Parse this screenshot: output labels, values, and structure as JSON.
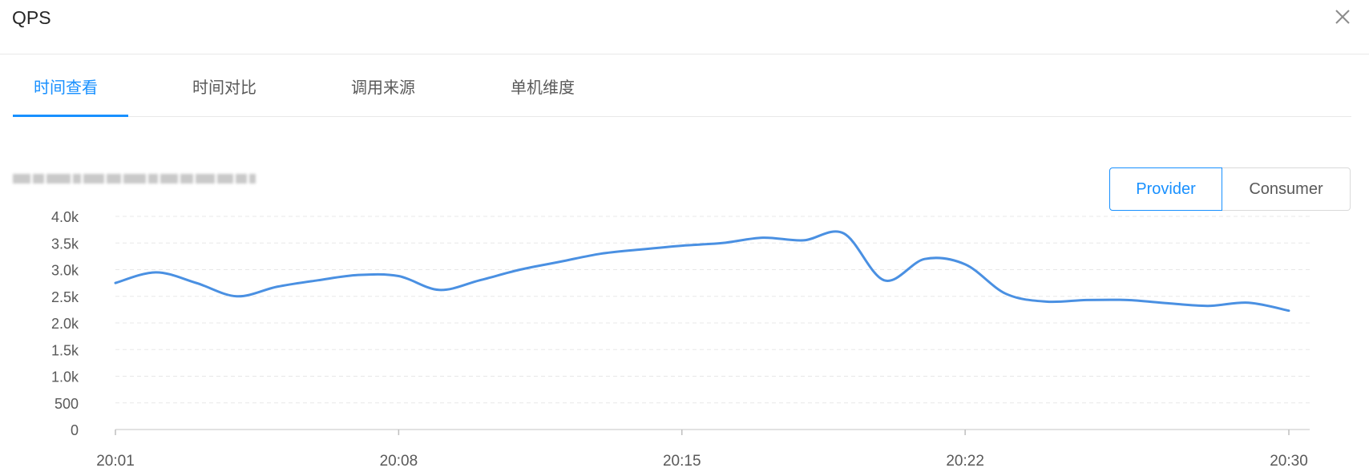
{
  "dialog": {
    "title": "QPS",
    "close_icon": "close-icon"
  },
  "tabs": [
    {
      "label": "时间查看",
      "active": true
    },
    {
      "label": "时间对比",
      "active": false
    },
    {
      "label": "调用来源",
      "active": false
    },
    {
      "label": "单机维度",
      "active": false
    }
  ],
  "toggle": {
    "provider_label": "Provider",
    "consumer_label": "Consumer",
    "selected": "Provider"
  },
  "colors": {
    "accent": "#1890ff",
    "line": "#4a90e2",
    "grid": "#e8e8e8",
    "axis_text": "#595959"
  },
  "chart_data": {
    "type": "line",
    "title": "",
    "xlabel": "",
    "ylabel": "",
    "ylim": [
      0,
      4000
    ],
    "y_ticks": [
      {
        "value": 0,
        "label": "0"
      },
      {
        "value": 500,
        "label": "500"
      },
      {
        "value": 1000,
        "label": "1.0k"
      },
      {
        "value": 1500,
        "label": "1.5k"
      },
      {
        "value": 2000,
        "label": "2.0k"
      },
      {
        "value": 2500,
        "label": "2.5k"
      },
      {
        "value": 3000,
        "label": "3.0k"
      },
      {
        "value": 3500,
        "label": "3.5k"
      },
      {
        "value": 4000,
        "label": "4.0k"
      }
    ],
    "x_ticks": [
      "20:01",
      "20:08",
      "20:15",
      "20:22",
      "20:30"
    ],
    "grid": true,
    "series": [
      {
        "x": [
          "20:01",
          "20:02",
          "20:03",
          "20:04",
          "20:05",
          "20:06",
          "20:07",
          "20:08",
          "20:09",
          "20:10",
          "20:11",
          "20:12",
          "20:13",
          "20:14",
          "20:15",
          "20:16",
          "20:17",
          "20:18",
          "20:19",
          "20:20",
          "20:21",
          "20:22",
          "20:23",
          "20:24",
          "20:25",
          "20:26",
          "20:27",
          "20:28",
          "20:29",
          "20:30"
        ],
        "values": [
          2750,
          2950,
          2750,
          2500,
          2680,
          2800,
          2900,
          2880,
          2620,
          2800,
          3000,
          3150,
          3300,
          3380,
          3450,
          3500,
          3600,
          3550,
          3680,
          2800,
          3200,
          3100,
          2550,
          2400,
          2430,
          2430,
          2370,
          2320,
          2380,
          2230
        ]
      }
    ]
  }
}
